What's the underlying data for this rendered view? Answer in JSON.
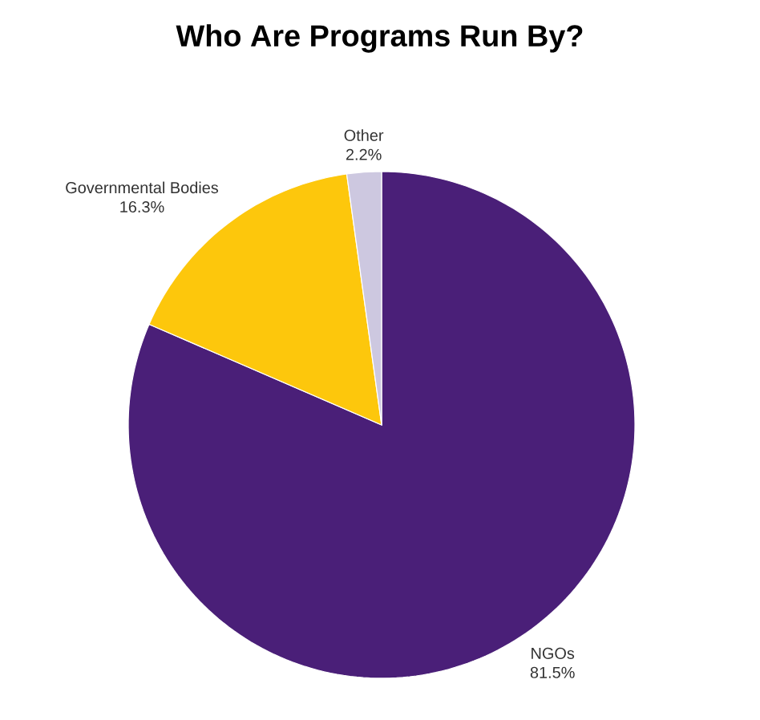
{
  "chart_data": {
    "type": "pie",
    "title": "Who Are Programs Run By?",
    "categories": [
      "NGOs",
      "Governmental Bodies",
      "Other"
    ],
    "values": [
      81.5,
      16.3,
      2.2
    ],
    "value_labels": [
      "81.5%",
      "16.3%",
      "2.2%"
    ],
    "colors": [
      "#4a1f78",
      "#fdc70c",
      "#cdc8e0"
    ]
  }
}
